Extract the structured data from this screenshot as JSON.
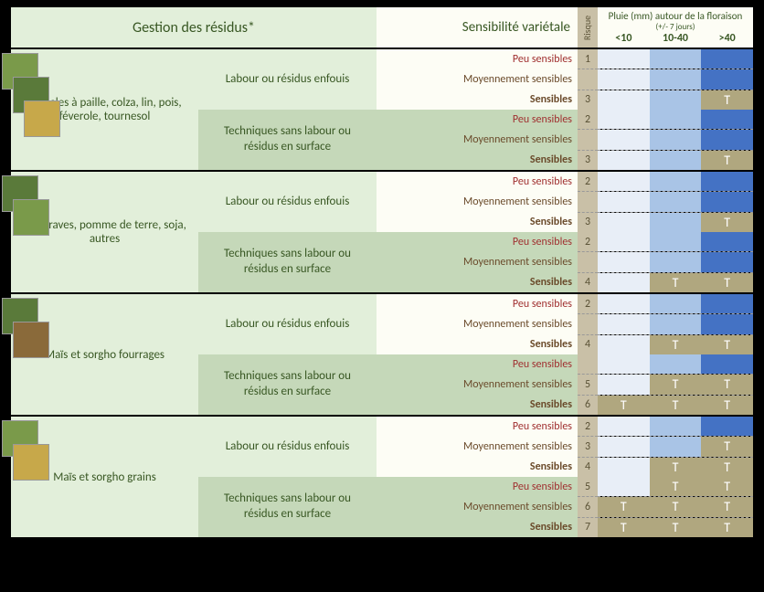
{
  "colors": {
    "page_bg": "#000000",
    "light_green": "#e2efda",
    "mid_green": "#c5d8b9",
    "cream": "#fdfdf5",
    "tan": "#c9c0a7",
    "text_green": "#385723",
    "text_red": "#a03030",
    "text_brown": "#6a4a2a",
    "rain_low": "#e8eef7",
    "rain_mid": "#a9c4e6",
    "rain_high": "#4472c4",
    "rain_t_bg": "#b0a77f"
  },
  "header": {
    "residus": "Gestion des résidus*",
    "sensibilite": "Sensibilité variétale",
    "risque": "Risque",
    "rain_title": "Pluie (mm) autour de la floraison",
    "rain_sub": "(+/- 7 jours)",
    "rain_bins": [
      "<10",
      "10-40",
      ">40"
    ]
  },
  "management": {
    "labour": "Labour ou résidus enfouis",
    "sans": "Techniques sans labour   ou résidus en surface"
  },
  "sensitivity_labels": {
    "peu": "Peu sensibles",
    "moy": "Moyennement sensibles",
    "sen": "Sensibles"
  },
  "rain_scale": {
    "low": "#e8eef7",
    "mid": "#a9c4e6",
    "high": "#4472c4",
    "t": "#b0a77f"
  },
  "crops": [
    {
      "label": "Céréales à paille, colza, lin, pois, féverole, tournesol",
      "blocks": [
        {
          "mgmt": "labour",
          "rows": [
            {
              "sens": "peu",
              "risk": "1",
              "rain": [
                "low",
                "mid",
                "high"
              ]
            },
            {
              "sens": "moy",
              "risk": "",
              "rain": [
                "low",
                "mid",
                "high"
              ]
            },
            {
              "sens": "sen",
              "risk": "3",
              "rain": [
                "low",
                "mid",
                "t"
              ]
            }
          ]
        },
        {
          "mgmt": "sans",
          "rows": [
            {
              "sens": "peu",
              "risk": "2",
              "rain": [
                "low",
                "mid",
                "high"
              ]
            },
            {
              "sens": "moy",
              "risk": "",
              "rain": [
                "low",
                "mid",
                "high"
              ]
            },
            {
              "sens": "sen",
              "risk": "3",
              "rain": [
                "low",
                "mid",
                "t"
              ]
            }
          ]
        }
      ]
    },
    {
      "label": "Betteraves, pomme de terre, soja, autres",
      "blocks": [
        {
          "mgmt": "labour",
          "rows": [
            {
              "sens": "peu",
              "risk": "2",
              "rain": [
                "low",
                "mid",
                "high"
              ]
            },
            {
              "sens": "moy",
              "risk": "",
              "rain": [
                "low",
                "mid",
                "high"
              ]
            },
            {
              "sens": "sen",
              "risk": "3",
              "rain": [
                "low",
                "mid",
                "t"
              ]
            }
          ]
        },
        {
          "mgmt": "sans",
          "rows": [
            {
              "sens": "peu",
              "risk": "2",
              "rain": [
                "low",
                "mid",
                "high"
              ]
            },
            {
              "sens": "moy",
              "risk": "",
              "rain": [
                "low",
                "mid",
                "high"
              ]
            },
            {
              "sens": "sen",
              "risk": "4",
              "rain": [
                "low",
                "t",
                "t"
              ]
            }
          ]
        }
      ]
    },
    {
      "label": "Maïs et sorgho fourrages",
      "blocks": [
        {
          "mgmt": "labour",
          "rows": [
            {
              "sens": "peu",
              "risk": "2",
              "rain": [
                "low",
                "mid",
                "high"
              ]
            },
            {
              "sens": "moy",
              "risk": "",
              "rain": [
                "low",
                "mid",
                "high"
              ]
            },
            {
              "sens": "sen",
              "risk": "4",
              "rain": [
                "low",
                "t",
                "t"
              ]
            }
          ]
        },
        {
          "mgmt": "sans",
          "rows": [
            {
              "sens": "peu",
              "risk": "",
              "rain": [
                "low",
                "mid",
                "high"
              ]
            },
            {
              "sens": "moy",
              "risk": "5",
              "rain": [
                "low",
                "t",
                "t"
              ]
            },
            {
              "sens": "sen",
              "risk": "6",
              "rain": [
                "t",
                "t",
                "t"
              ]
            }
          ]
        }
      ]
    },
    {
      "label": "Maïs et sorgho grains",
      "blocks": [
        {
          "mgmt": "labour",
          "rows": [
            {
              "sens": "peu",
              "risk": "2",
              "rain": [
                "low",
                "mid",
                "high"
              ]
            },
            {
              "sens": "moy",
              "risk": "3",
              "rain": [
                "low",
                "mid",
                "t"
              ]
            },
            {
              "sens": "sen",
              "risk": "4",
              "rain": [
                "low",
                "t",
                "t"
              ]
            }
          ]
        },
        {
          "mgmt": "sans",
          "rows": [
            {
              "sens": "peu",
              "risk": "5",
              "rain": [
                "low",
                "t",
                "t"
              ]
            },
            {
              "sens": "moy",
              "risk": "6",
              "rain": [
                "t",
                "t",
                "t"
              ]
            },
            {
              "sens": "sen",
              "risk": "7",
              "rain": [
                "t",
                "t",
                "t"
              ]
            }
          ]
        }
      ]
    }
  ]
}
